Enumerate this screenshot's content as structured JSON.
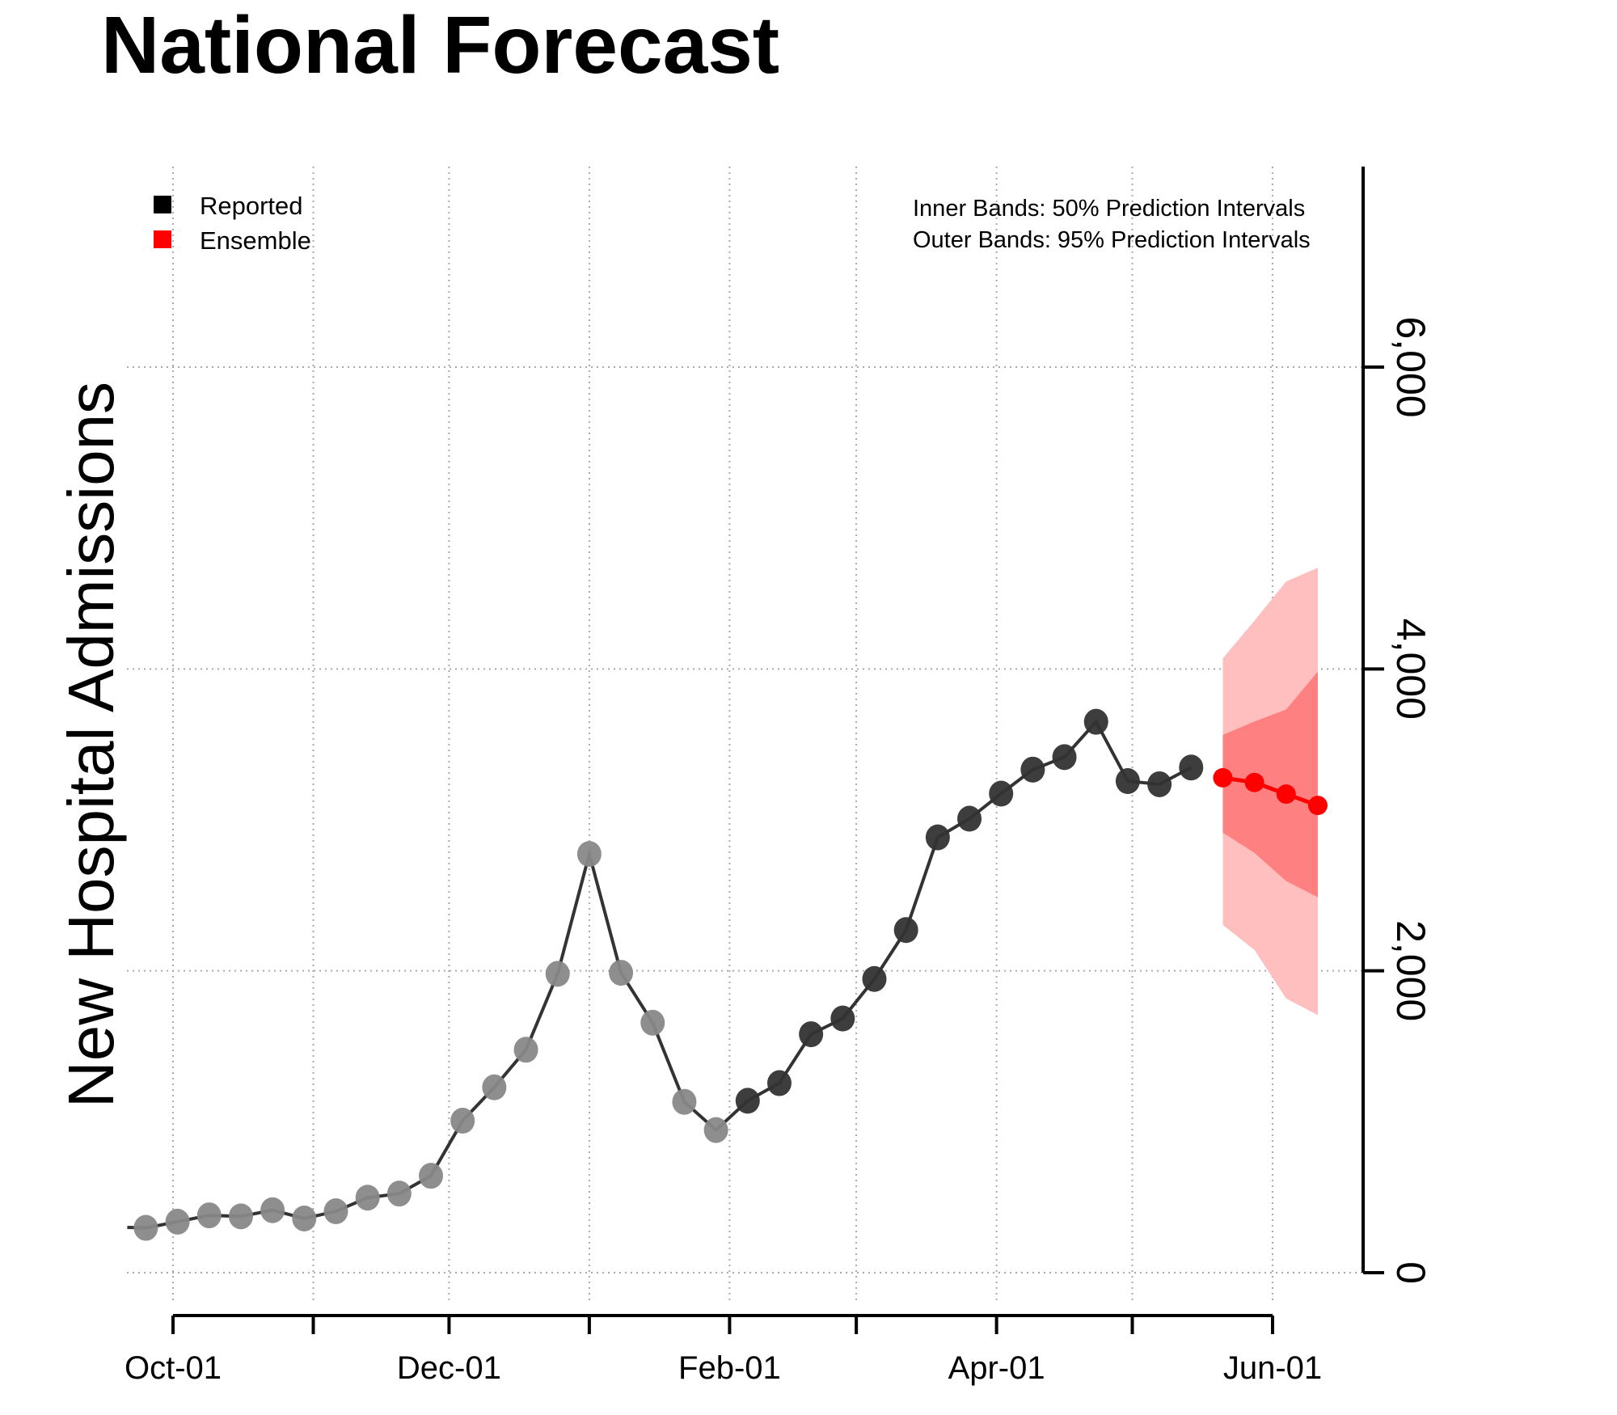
{
  "title": "National Forecast",
  "chart_data": {
    "type": "line",
    "title": "National Forecast",
    "xlabel": "",
    "ylabel": "New Hospital Admissions",
    "ylim": [
      -200,
      7300
    ],
    "yticks": [
      0,
      2000,
      4000,
      6000
    ],
    "ytick_labels": [
      "0",
      "2,000",
      "4,000",
      "6,000"
    ],
    "xticks_major": [
      "Oct-01",
      "Dec-01",
      "Feb-01",
      "Apr-01",
      "Jun-01"
    ],
    "xticks_minor": [
      "Nov-01",
      "Jan-01",
      "Mar-01",
      "May-01"
    ],
    "grid": true,
    "legend": {
      "placement": "top-left",
      "entries": [
        {
          "label": "Reported",
          "color": "#000000"
        },
        {
          "label": "Ensemble",
          "color": "#ff0000"
        }
      ]
    },
    "notes": [
      "Inner Bands: 50% Prediction Intervals",
      "Outer Bands: 95% Prediction Intervals"
    ],
    "reported": {
      "dates": [
        "Sep-25",
        "Oct-02",
        "Oct-09",
        "Oct-16",
        "Oct-23",
        "Oct-30",
        "Nov-06",
        "Nov-13",
        "Nov-20",
        "Nov-27",
        "Dec-04",
        "Dec-11",
        "Dec-18",
        "Dec-25",
        "Jan-01",
        "Jan-08",
        "Jan-15",
        "Jan-22",
        "Jan-29",
        "Feb-05",
        "Feb-12",
        "Feb-19",
        "Feb-26",
        "Mar-05",
        "Mar-12",
        "Mar-19",
        "Mar-26",
        "Apr-02",
        "Apr-09",
        "Apr-16",
        "Apr-23",
        "Apr-30",
        "May-07",
        "May-14"
      ],
      "values": [
        297,
        338,
        380,
        373,
        414,
        359,
        407,
        497,
        524,
        642,
        1007,
        1228,
        1477,
        1980,
        2774,
        1987,
        1656,
        1132,
        945,
        1139,
        1256,
        1580,
        1684,
        1946,
        2270,
        2884,
        3008,
        3174,
        3333,
        3416,
        3650,
        3257,
        3236,
        3347
      ],
      "older_color": "#888888",
      "recent_color": "#333333",
      "older_count": 19
    },
    "ensemble": {
      "dates": [
        "May-21",
        "May-28",
        "Jun-04",
        "Jun-11"
      ],
      "median": [
        3279,
        3248,
        3171,
        3096
      ],
      "pi50_lower": [
        2916,
        2781,
        2595,
        2487
      ],
      "pi50_upper": [
        3563,
        3652,
        3731,
        3983
      ],
      "pi95_lower": [
        2304,
        2138,
        1817,
        1707
      ],
      "pi95_upper": [
        4070,
        4320,
        4580,
        4671
      ],
      "color": "#ff0000",
      "pi50_color": "#ff8080",
      "pi95_color": "#ffbfbf"
    }
  }
}
